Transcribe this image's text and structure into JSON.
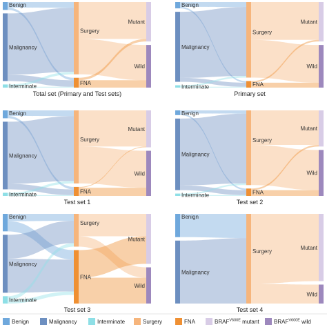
{
  "legend": {
    "entries": [
      {
        "key": "benign",
        "label": "Benign",
        "color": "#6fa8dc"
      },
      {
        "key": "malignancy",
        "label": "Malignancy",
        "color": "#6d8fc0"
      },
      {
        "key": "interminate",
        "label": "Interminate",
        "color": "#8edfe6"
      },
      {
        "key": "surgery",
        "label": "Surgery",
        "color": "#f6b57c"
      },
      {
        "key": "fna",
        "label": "FNA",
        "color": "#ef9033"
      },
      {
        "key": "mutant",
        "label": "mutant",
        "label_prefix": "BRAF",
        "label_sup": "V600E",
        "color": "#d8cce6"
      },
      {
        "key": "wild",
        "label": "wild",
        "label_prefix": "BRAF",
        "label_sup": "V600E",
        "color": "#9d88bd"
      }
    ]
  },
  "panels": [
    {
      "id": "total-set",
      "title": "Total set (Primary and Test sets)",
      "nodes": [
        {
          "key": "benign",
          "label": "Benign",
          "col": 0,
          "value": 10
        },
        {
          "key": "malignancy",
          "label": "Malignancy",
          "col": 0,
          "value": 86
        },
        {
          "key": "interminate",
          "label": "Interminate",
          "col": 0,
          "value": 4
        },
        {
          "key": "surgery",
          "label": "Surgery",
          "col": 1,
          "value": 88
        },
        {
          "key": "fna",
          "label": "FNA",
          "col": 1,
          "value": 12
        },
        {
          "key": "mutant",
          "label": "Mutant",
          "col": 2,
          "value": 48
        },
        {
          "key": "wild",
          "label": "Wild",
          "col": 2,
          "value": 52
        }
      ],
      "links": [
        {
          "source": "benign",
          "target": "surgery",
          "value": 7
        },
        {
          "source": "benign",
          "target": "fna",
          "value": 3
        },
        {
          "source": "malignancy",
          "target": "surgery",
          "value": 78
        },
        {
          "source": "malignancy",
          "target": "fna",
          "value": 8
        },
        {
          "source": "interminate",
          "target": "surgery",
          "value": 3
        },
        {
          "source": "interminate",
          "target": "fna",
          "value": 1
        },
        {
          "source": "surgery",
          "target": "mutant",
          "value": 45
        },
        {
          "source": "surgery",
          "target": "wild",
          "value": 43
        },
        {
          "source": "fna",
          "target": "mutant",
          "value": 3
        },
        {
          "source": "fna",
          "target": "wild",
          "value": 9
        }
      ]
    },
    {
      "id": "primary-set",
      "title": "Primary set",
      "nodes": [
        {
          "key": "benign",
          "label": "Benign",
          "col": 0,
          "value": 8
        },
        {
          "key": "malignancy",
          "label": "Malignancy",
          "col": 0,
          "value": 89
        },
        {
          "key": "interminate",
          "label": "Interminate",
          "col": 0,
          "value": 3
        },
        {
          "key": "surgery",
          "label": "Surgery",
          "col": 1,
          "value": 92
        },
        {
          "key": "fna",
          "label": "FNA",
          "col": 1,
          "value": 8
        },
        {
          "key": "mutant",
          "label": "Mutant",
          "col": 2,
          "value": 48
        },
        {
          "key": "wild",
          "label": "Wild",
          "col": 2,
          "value": 52
        }
      ],
      "links": [
        {
          "source": "benign",
          "target": "surgery",
          "value": 6
        },
        {
          "source": "benign",
          "target": "fna",
          "value": 2
        },
        {
          "source": "malignancy",
          "target": "surgery",
          "value": 84
        },
        {
          "source": "malignancy",
          "target": "fna",
          "value": 5
        },
        {
          "source": "interminate",
          "target": "surgery",
          "value": 2
        },
        {
          "source": "interminate",
          "target": "fna",
          "value": 1
        },
        {
          "source": "surgery",
          "target": "mutant",
          "value": 46
        },
        {
          "source": "surgery",
          "target": "wild",
          "value": 46
        },
        {
          "source": "fna",
          "target": "mutant",
          "value": 2
        },
        {
          "source": "fna",
          "target": "wild",
          "value": 6
        }
      ]
    },
    {
      "id": "test-set-1",
      "title": "Test set 1",
      "nodes": [
        {
          "key": "benign",
          "label": "Benign",
          "col": 0,
          "value": 10
        },
        {
          "key": "malignancy",
          "label": "Malignancy",
          "col": 0,
          "value": 86
        },
        {
          "key": "interminate",
          "label": "Interminate",
          "col": 0,
          "value": 4
        },
        {
          "key": "surgery",
          "label": "Surgery",
          "col": 1,
          "value": 89
        },
        {
          "key": "fna",
          "label": "FNA",
          "col": 1,
          "value": 11
        },
        {
          "key": "mutant",
          "label": "Mutant",
          "col": 2,
          "value": 45
        },
        {
          "key": "wild",
          "label": "Wild",
          "col": 2,
          "value": 55
        }
      ],
      "links": [
        {
          "source": "benign",
          "target": "surgery",
          "value": 7
        },
        {
          "source": "benign",
          "target": "fna",
          "value": 3
        },
        {
          "source": "malignancy",
          "target": "surgery",
          "value": 79
        },
        {
          "source": "malignancy",
          "target": "fna",
          "value": 7
        },
        {
          "source": "interminate",
          "target": "surgery",
          "value": 3
        },
        {
          "source": "interminate",
          "target": "fna",
          "value": 1
        },
        {
          "source": "surgery",
          "target": "mutant",
          "value": 44
        },
        {
          "source": "surgery",
          "target": "wild",
          "value": 45
        },
        {
          "source": "fna",
          "target": "mutant",
          "value": 1
        },
        {
          "source": "fna",
          "target": "wild",
          "value": 10
        }
      ]
    },
    {
      "id": "test-set-2",
      "title": "Test set 2",
      "nodes": [
        {
          "key": "benign",
          "label": "Benign",
          "col": 0,
          "value": 6
        },
        {
          "key": "malignancy",
          "label": "Malignancy",
          "col": 0,
          "value": 91
        },
        {
          "key": "interminate",
          "label": "Interminate",
          "col": 0,
          "value": 3
        },
        {
          "key": "surgery",
          "label": "Surgery",
          "col": 1,
          "value": 91
        },
        {
          "key": "fna",
          "label": "FNA",
          "col": 1,
          "value": 9
        },
        {
          "key": "mutant",
          "label": "Mutant",
          "col": 2,
          "value": 44
        },
        {
          "key": "wild",
          "label": "Wild",
          "col": 2,
          "value": 56
        }
      ],
      "links": [
        {
          "source": "benign",
          "target": "surgery",
          "value": 4
        },
        {
          "source": "benign",
          "target": "fna",
          "value": 2
        },
        {
          "source": "malignancy",
          "target": "surgery",
          "value": 85
        },
        {
          "source": "malignancy",
          "target": "fna",
          "value": 6
        },
        {
          "source": "interminate",
          "target": "surgery",
          "value": 2
        },
        {
          "source": "interminate",
          "target": "fna",
          "value": 1
        },
        {
          "source": "surgery",
          "target": "mutant",
          "value": 42
        },
        {
          "source": "surgery",
          "target": "wild",
          "value": 49
        },
        {
          "source": "fna",
          "target": "mutant",
          "value": 2
        },
        {
          "source": "fna",
          "target": "wild",
          "value": 7
        }
      ]
    },
    {
      "id": "test-set-3",
      "title": "Test set 3",
      "nodes": [
        {
          "key": "benign",
          "label": "Benign",
          "col": 0,
          "value": 19
        },
        {
          "key": "malignancy",
          "label": "Malignancy",
          "col": 0,
          "value": 63
        },
        {
          "key": "interminate",
          "label": "Interminate",
          "col": 0,
          "value": 8
        },
        {
          "key": "surgery",
          "label": "Surgery",
          "col": 1,
          "value": 38
        },
        {
          "key": "fna",
          "label": "FNA",
          "col": 1,
          "value": 62
        },
        {
          "key": "mutant",
          "label": "Mutant",
          "col": 2,
          "value": 58
        },
        {
          "key": "wild",
          "label": "Wild",
          "col": 2,
          "value": 42
        }
      ],
      "links": [
        {
          "source": "benign",
          "target": "surgery",
          "value": 8
        },
        {
          "source": "benign",
          "target": "fna",
          "value": 11
        },
        {
          "source": "malignancy",
          "target": "surgery",
          "value": 26
        },
        {
          "source": "malignancy",
          "target": "fna",
          "value": 37
        },
        {
          "source": "interminate",
          "target": "surgery",
          "value": 4
        },
        {
          "source": "interminate",
          "target": "fna",
          "value": 4
        },
        {
          "source": "surgery",
          "target": "mutant",
          "value": 26
        },
        {
          "source": "surgery",
          "target": "wild",
          "value": 12
        },
        {
          "source": "fna",
          "target": "mutant",
          "value": 32
        },
        {
          "source": "fna",
          "target": "wild",
          "value": 30
        }
      ]
    },
    {
      "id": "test-set-4",
      "title": "Test set 4",
      "nodes": [
        {
          "key": "benign",
          "label": "Benign",
          "col": 0,
          "value": 27
        },
        {
          "key": "malignancy",
          "label": "Malignancy",
          "col": 0,
          "value": 73
        },
        {
          "key": "surgery",
          "label": "Surgery",
          "col": 1,
          "value": 100
        },
        {
          "key": "mutant",
          "label": "Mutant",
          "col": 2,
          "value": 78
        },
        {
          "key": "wild",
          "label": "Wild",
          "col": 2,
          "value": 22
        }
      ],
      "links": [
        {
          "source": "benign",
          "target": "surgery",
          "value": 27
        },
        {
          "source": "malignancy",
          "target": "surgery",
          "value": 73
        },
        {
          "source": "surgery",
          "target": "mutant",
          "value": 78
        },
        {
          "source": "surgery",
          "target": "wild",
          "value": 22
        }
      ]
    }
  ]
}
